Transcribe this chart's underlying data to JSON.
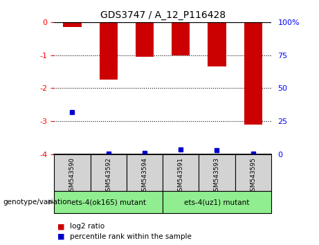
{
  "title": "GDS3747 / A_12_P116428",
  "samples": [
    "GSM543590",
    "GSM543592",
    "GSM543594",
    "GSM543591",
    "GSM543593",
    "GSM543595"
  ],
  "log2_ratios": [
    -0.15,
    -1.75,
    -1.05,
    -1.0,
    -1.35,
    -3.1
  ],
  "percentile_ranks_left": [
    -2.72,
    -3.97,
    -3.95,
    -3.85,
    -3.88,
    -3.97
  ],
  "bar_color": "#cc0000",
  "dot_color": "#0000cc",
  "ylim_left": [
    -4,
    0
  ],
  "ylim_right": [
    0,
    100
  ],
  "yticks_left": [
    0,
    -1,
    -2,
    -3,
    -4
  ],
  "yticks_right": [
    100,
    75,
    50,
    25,
    0
  ],
  "ytick_labels_left": [
    "0",
    "-1",
    "-2",
    "-3",
    "-4"
  ],
  "ytick_labels_right": [
    "100%",
    "75",
    "50",
    "25",
    "0"
  ],
  "group1_label": "ets-4(ok165) mutant",
  "group2_label": "ets-4(uz1) mutant",
  "group1_indices": [
    0,
    1,
    2
  ],
  "group2_indices": [
    3,
    4,
    5
  ],
  "group_bg_color": "#90ee90",
  "sample_bg_color": "#d3d3d3",
  "genotype_label": "genotype/variation",
  "legend_items": [
    "log2 ratio",
    "percentile rank within the sample"
  ],
  "bar_width": 0.5,
  "dot_size": 5
}
